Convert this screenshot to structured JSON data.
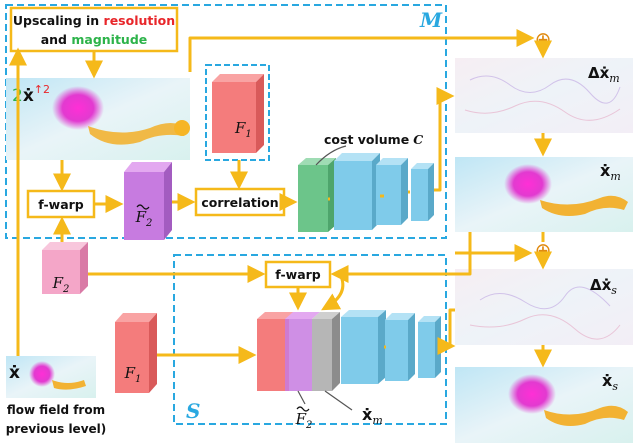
{
  "colors": {
    "arrow": "#F5B91A",
    "dashed_box": "#29A8E0",
    "feature_red": "#F47C7C",
    "feature_pink": "#F4A6C8",
    "feature_purple": "#C77BE0",
    "cost_green": "#6CC58A",
    "conv_blue": "#7FCBEA",
    "res_red": "#E8262A",
    "mag_green": "#2DB34A"
  },
  "upscale": {
    "line1_prefix": "Upscaling in ",
    "line1_highlight": "resolution",
    "line2_prefix": "and ",
    "line2_highlight": "magnitude"
  },
  "M": {
    "label": "M",
    "upscaled_field_coef": "2",
    "upscaled_field_var": "ẋ",
    "upscaled_field_sup": "↑2",
    "f1": "F",
    "f1_sub": "1",
    "fwarp": "f-warp",
    "f2_tilde": "F",
    "f2_tilde_sub": "2",
    "correlation": "correlation",
    "cost_volume": "cost volume",
    "cost_volume_var": "C"
  },
  "S": {
    "label": "S",
    "fwarp": "f-warp",
    "f1": "F",
    "f1_sub": "1",
    "f2_tilde": "F",
    "f2_tilde_sub": "2",
    "xm": "ẋ",
    "xm_sub": "m"
  },
  "left": {
    "f2": "F",
    "f2_sub": "2",
    "input_var": "ẋ",
    "caption_line1": "flow field from",
    "caption_line2": "previous level)"
  },
  "right": {
    "plus_sign": "⊕",
    "delta_xm": "Δẋ",
    "delta_xm_sub": "m",
    "xm": "ẋ",
    "xm_sub": "m",
    "delta_xs": "Δẋ",
    "delta_xs_sub": "s",
    "xs": "ẋ",
    "xs_sub": "s"
  }
}
